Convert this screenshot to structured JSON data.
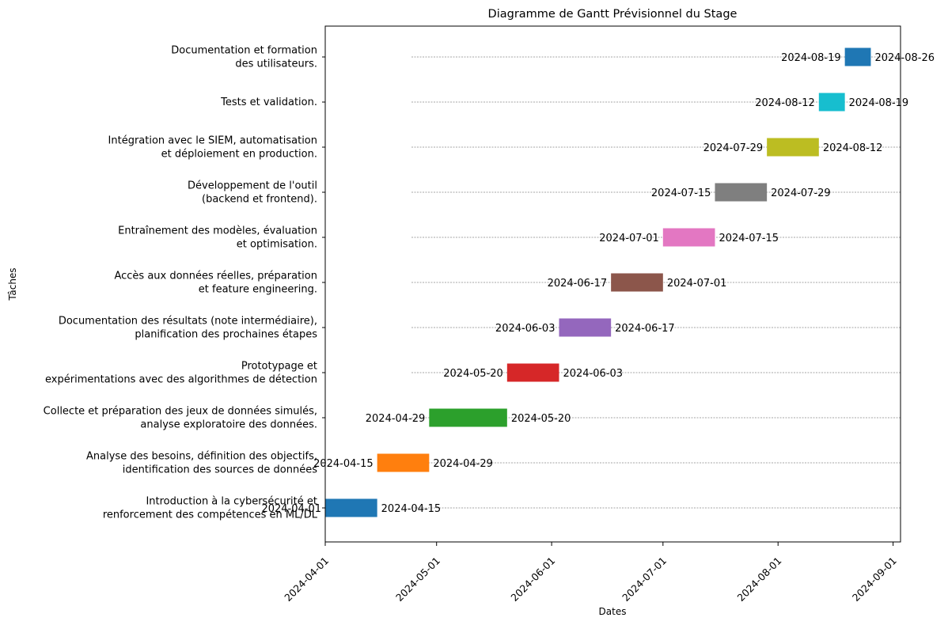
{
  "chart_data": {
    "type": "gantt",
    "title": "Diagramme de Gantt Prévisionnel du Stage",
    "xlabel": "Dates",
    "ylabel": "Tâches",
    "xlim": [
      "2024-04-01",
      "2024-09-03"
    ],
    "x_ticks": [
      "2024-04-01",
      "2024-05-01",
      "2024-06-01",
      "2024-07-01",
      "2024-08-01",
      "2024-09-01"
    ],
    "grid": "horizontal dotted lines per task",
    "tasks": [
      {
        "label": [
          "Introduction à la cybersécurité et",
          "renforcement des compétences en ML/DL"
        ],
        "start": "2024-04-01",
        "end": "2024-04-15",
        "color": "#1f77b4"
      },
      {
        "label": [
          "Analyse des besoins, définition des objectifs,",
          "identification des sources de données"
        ],
        "start": "2024-04-15",
        "end": "2024-04-29",
        "color": "#ff7f0e"
      },
      {
        "label": [
          "Collecte et préparation des jeux de données simulés,",
          "analyse exploratoire des données."
        ],
        "start": "2024-04-29",
        "end": "2024-05-20",
        "color": "#2ca02c"
      },
      {
        "label": [
          "Prototypage et",
          "expérimentations avec des algorithmes de détection"
        ],
        "start": "2024-05-20",
        "end": "2024-06-03",
        "color": "#d62728"
      },
      {
        "label": [
          "Documentation des résultats (note intermédiaire),",
          "planification des prochaines étapes"
        ],
        "start": "2024-06-03",
        "end": "2024-06-17",
        "color": "#9467bd"
      },
      {
        "label": [
          "Accès aux données réelles, préparation",
          "et feature engineering."
        ],
        "start": "2024-06-17",
        "end": "2024-07-01",
        "color": "#8c564b"
      },
      {
        "label": [
          "Entraînement des modèles, évaluation",
          "et optimisation."
        ],
        "start": "2024-07-01",
        "end": "2024-07-15",
        "color": "#e377c2"
      },
      {
        "label": [
          "Développement de l'outil",
          "(backend et frontend)."
        ],
        "start": "2024-07-15",
        "end": "2024-07-29",
        "color": "#7f7f7f"
      },
      {
        "label": [
          "Intégration avec le SIEM, automatisation",
          "et déploiement en production."
        ],
        "start": "2024-07-29",
        "end": "2024-08-12",
        "color": "#bcbd22"
      },
      {
        "label": [
          "Tests et validation."
        ],
        "start": "2024-08-12",
        "end": "2024-08-19",
        "color": "#17becf"
      },
      {
        "label": [
          "Documentation et formation",
          "des utilisateurs."
        ],
        "start": "2024-08-19",
        "end": "2024-08-26",
        "color": "#1f77b4"
      }
    ]
  }
}
